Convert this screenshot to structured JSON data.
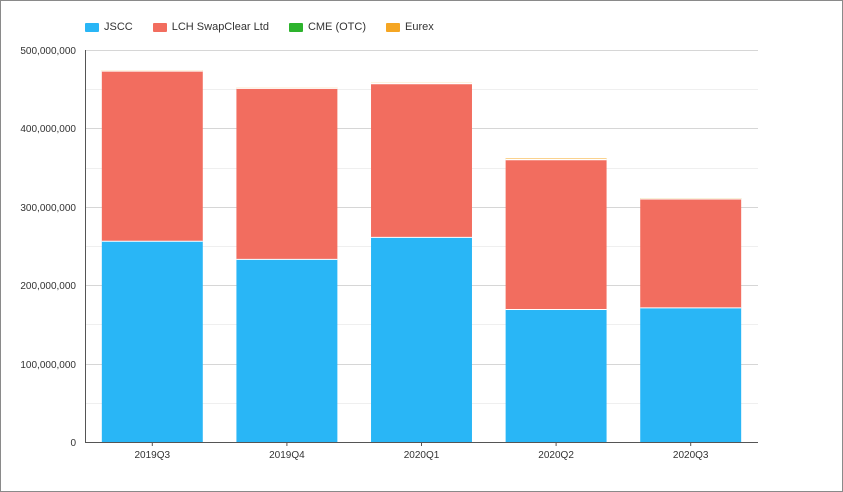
{
  "chart_data": {
    "type": "bar",
    "stacked": true,
    "categories": [
      "2019Q3",
      "2019Q4",
      "2020Q1",
      "2020Q2",
      "2020Q3"
    ],
    "series": [
      {
        "name": "JSCC",
        "color": "#29b6f6",
        "values": [
          256000000,
          233000000,
          261000000,
          169000000,
          171000000
        ]
      },
      {
        "name": "LCH SwapClear Ltd",
        "color": "#f26d5f",
        "values": [
          217000000,
          218000000,
          196000000,
          191000000,
          139000000
        ]
      },
      {
        "name": "CME (OTC)",
        "color": "#2db32d",
        "values": [
          300000,
          400000,
          400000,
          800000,
          200000
        ]
      },
      {
        "name": "Eurex",
        "color": "#f5a623",
        "values": [
          200000,
          700000,
          600000,
          1300000,
          200000
        ]
      }
    ],
    "ylim": [
      0,
      500000000
    ],
    "yticks": [
      0,
      100000000,
      200000000,
      300000000,
      400000000,
      500000000
    ],
    "ytick_labels": [
      "0",
      "100,000,000",
      "200,000,000",
      "300,000,000",
      "400,000,000",
      "500,000,000"
    ],
    "grid": true,
    "legend_position": "top-left",
    "title": "",
    "xlabel": "",
    "ylabel": ""
  }
}
